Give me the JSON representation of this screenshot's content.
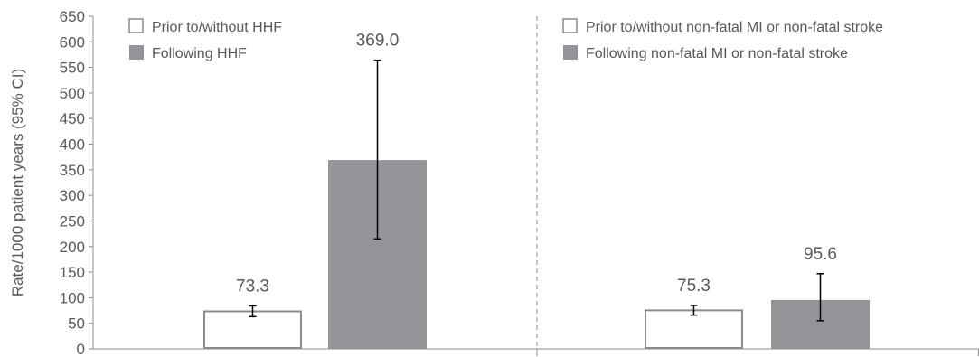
{
  "chart_data": {
    "type": "bar",
    "ylabel": "Rate/1000 patient years (95% CI)",
    "ylim": [
      0,
      650
    ],
    "y_ticks": [
      0,
      50,
      100,
      150,
      200,
      250,
      300,
      350,
      400,
      450,
      500,
      550,
      600,
      650
    ],
    "grid": false,
    "panels": [
      {
        "legend": [
          {
            "label": "Prior to/without HHF",
            "fill": "#ffffff",
            "stroke": "#8c8c8c"
          },
          {
            "label": "Following HHF",
            "fill": "#939598",
            "stroke": "#939598"
          }
        ],
        "bars": [
          {
            "series": "Prior to/without HHF",
            "value": 73.3,
            "value_label": "73.3",
            "ci_low": 63,
            "ci_high": 84,
            "fill": "#ffffff",
            "stroke": "#8c8c8c"
          },
          {
            "series": "Following HHF",
            "value": 369.0,
            "value_label": "369.0",
            "ci_low": 215,
            "ci_high": 564,
            "fill": "#939598",
            "stroke": "#939598"
          }
        ]
      },
      {
        "legend": [
          {
            "label": "Prior to/without non-fatal MI or non-fatal stroke",
            "fill": "#ffffff",
            "stroke": "#8c8c8c"
          },
          {
            "label": "Following non-fatal MI or non-fatal stroke",
            "fill": "#939598",
            "stroke": "#939598"
          }
        ],
        "bars": [
          {
            "series": "Prior to/without non-fatal MI or non-fatal stroke",
            "value": 75.3,
            "value_label": "75.3",
            "ci_low": 66,
            "ci_high": 85,
            "fill": "#ffffff",
            "stroke": "#8c8c8c"
          },
          {
            "series": "Following non-fatal MI or non-fatal stroke",
            "value": 95.6,
            "value_label": "95.6",
            "ci_low": 55,
            "ci_high": 147,
            "fill": "#939598",
            "stroke": "#939598"
          }
        ]
      }
    ]
  }
}
